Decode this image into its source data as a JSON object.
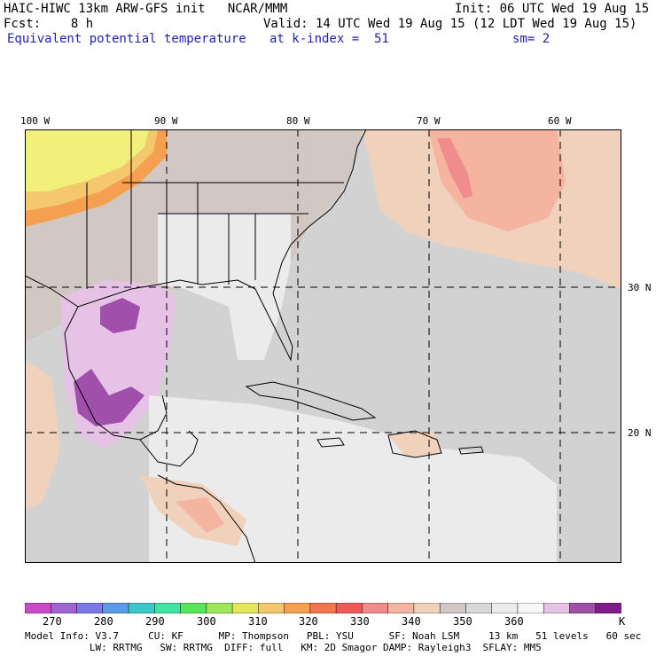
{
  "header": {
    "line1_left": "HAIC-HIWC 13km ARW-GFS init   NCAR/MMM",
    "line1_right": "Init: 06 UTC Wed 19 Aug 15",
    "line2_left": "Fcst:    8 h",
    "line2_right": "Valid: 14 UTC Wed 19 Aug 15 (12 LDT Wed 19 Aug 15)",
    "line3_field": "Equivalent potential temperature",
    "line3_level": "at k-index =  51",
    "line3_smooth": "sm= 2"
  },
  "map": {
    "lon_labels": [
      "100 W",
      "90 W",
      "80 W",
      "70 W",
      "60 W"
    ],
    "lat_labels": [
      "30 N",
      "20 N"
    ],
    "background_color": "#d3d3d3"
  },
  "colorbar": {
    "colors": [
      "#c94bc9",
      "#a065d0",
      "#7a7ae6",
      "#5a9ae6",
      "#3cc8c8",
      "#3ce6a0",
      "#5ae65a",
      "#a0e65a",
      "#e6e65a",
      "#f5c86e",
      "#f5a050",
      "#f07850",
      "#f05a5a",
      "#f08c8c",
      "#f5b4a0",
      "#f0d2bc",
      "#d2c8c3",
      "#d7d7d7",
      "#ebebeb",
      "#f7f7f7",
      "#e6c3e6",
      "#a050aa",
      "#7d1e87"
    ],
    "labels": [
      "270",
      "280",
      "290",
      "300",
      "310",
      "320",
      "330",
      "340",
      "350",
      "360",
      "K"
    ]
  },
  "model_info": {
    "line1": "Model Info: V3.7     CU: KF      MP: Thompson   PBL: YSU      SF: Noah LSM     13 km   51 levels   60 sec",
    "line2": "           LW: RRTMG   SW: RRTMG  DIFF: full   KM: 2D Smagor DAMP: Rayleigh3  SFLAY: MM5"
  }
}
